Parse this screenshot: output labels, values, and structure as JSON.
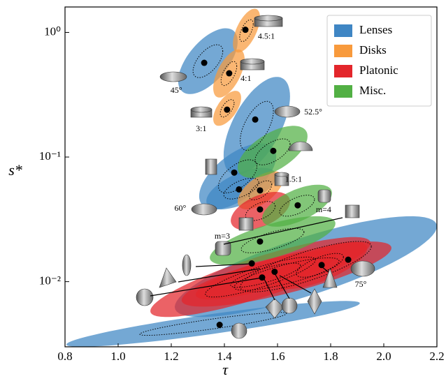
{
  "chart_data": {
    "type": "scatter",
    "xlabel": "τ",
    "ylabel": "s*",
    "xlim": [
      0.8,
      2.2
    ],
    "xticks": [
      0.8,
      {
        "value": 1.0,
        "label": "1.0"
      },
      1.2,
      1.4,
      1.6,
      1.8,
      {
        "value": 2.0,
        "label": "2.0"
      },
      2.2
    ],
    "ylim": [
      0.003,
      1.6
    ],
    "ylog": true,
    "yticks": [
      {
        "value": 0.01,
        "label": "10⁻²"
      },
      {
        "value": 0.1,
        "label": "10⁻¹"
      },
      {
        "value": 1,
        "label": "10⁰"
      }
    ],
    "legend": "upper right",
    "series": [
      {
        "name": "Lenses",
        "color": "#3f86c4",
        "x": [
          1.324,
          1.516,
          1.437,
          1.866,
          1.382,
          1.455
        ],
        "values": [
          0.57,
          0.2,
          0.075,
          0.015,
          0.0045,
          0.055
        ],
        "tau_range": [
          [
            1.226,
            1.45
          ],
          [
            1.397,
            1.647
          ],
          [
            1.305,
            1.595
          ],
          [
            1.213,
            2.2
          ],
          [
            0.805,
            1.91
          ],
          [
            1.332,
            1.595
          ]
        ],
        "s_range": [
          [
            0.32,
            1.08
          ],
          [
            0.072,
            0.44
          ],
          [
            0.038,
            0.129
          ],
          [
            0.0052,
            0.0335
          ],
          [
            0.003,
            0.007
          ],
          [
            0.038,
            0.082
          ]
        ],
        "corr": [
          0.6,
          0.6,
          0.6,
          0.8,
          0.9,
          0.6
        ],
        "labels": [
          "45°",
          "52.5°",
          null,
          "75°",
          null,
          "60°"
        ]
      },
      {
        "name": "Disks",
        "color": "#f89a3c",
        "x": [
          1.479,
          1.418,
          1.41,
          1.534
        ],
        "values": [
          1.05,
          0.47,
          0.24,
          0.054
        ],
        "tau_range": [
          [
            1.432,
            1.534
          ],
          [
            1.358,
            1.476
          ],
          [
            1.358,
            1.463
          ],
          [
            1.45,
            1.621
          ]
        ],
        "s_range": [
          [
            0.69,
            1.55
          ],
          [
            0.3,
            0.73
          ],
          [
            0.178,
            0.34
          ],
          [
            0.038,
            0.077
          ]
        ],
        "corr": [
          0.6,
          0.6,
          0.6,
          0.6
        ],
        "labels": [
          "4.5:1",
          "4:1",
          "3:1",
          "1.5:1"
        ]
      },
      {
        "name": "Platonic",
        "color": "#e3262b",
        "x": [
          1.534,
          1.503,
          1.589,
          1.542,
          1.766
        ],
        "values": [
          0.038,
          0.014,
          0.012,
          0.0108,
          0.0136
        ],
        "tau_range": [
          [
            1.424,
            1.647
          ],
          [
            1.121,
            1.95
          ],
          [
            1.239,
            2.029
          ],
          [
            1.292,
            1.818
          ],
          [
            1.582,
            1.937
          ]
        ],
        "s_range": [
          [
            0.0259,
            0.0525
          ],
          [
            0.0052,
            0.0228
          ],
          [
            0.0063,
            0.021
          ],
          [
            0.0072,
            0.0176
          ],
          [
            0.0087,
            0.021
          ]
        ],
        "corr": [
          0.5,
          0.85,
          0.8,
          0.8,
          0.7
        ],
        "labels": [
          null,
          null,
          null,
          null,
          null
        ]
      },
      {
        "name": "Misc.",
        "color": "#52b044",
        "x": [
          1.584,
          1.676,
          1.534
        ],
        "values": [
          0.112,
          0.041,
          0.021
        ],
        "tau_range": [
          [
            1.45,
            1.713
          ],
          [
            1.542,
            1.805
          ],
          [
            1.345,
            1.818
          ]
        ],
        "s_range": [
          [
            0.068,
            0.178
          ],
          [
            0.0276,
            0.06
          ],
          [
            0.0136,
            0.0335
          ]
        ],
        "corr": [
          0.6,
          0.6,
          0.7
        ],
        "labels": [
          null,
          "m=4",
          "m=3"
        ]
      }
    ]
  }
}
